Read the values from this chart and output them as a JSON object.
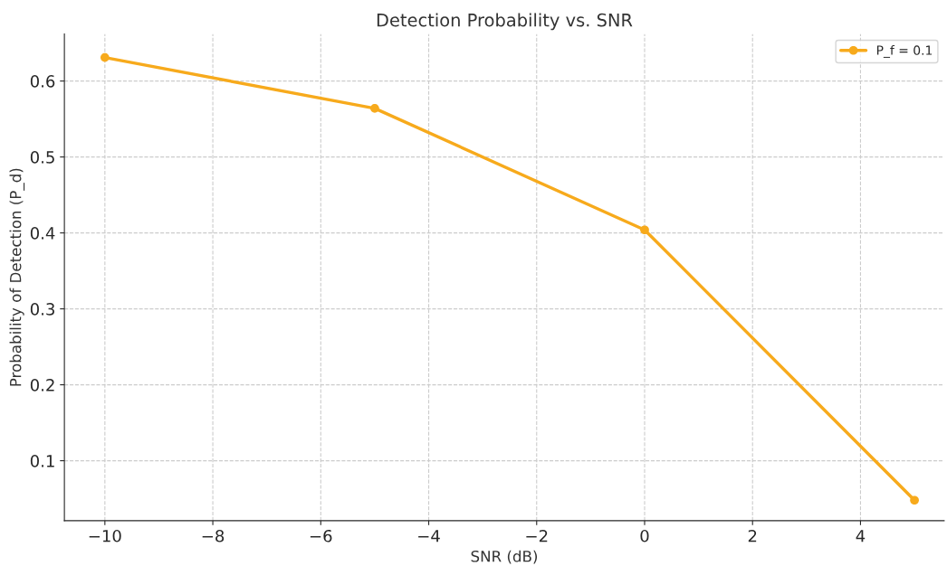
{
  "chart_data": {
    "type": "line",
    "title": "Detection Probability vs. SNR",
    "xlabel": "SNR (dB)",
    "ylabel": "Probability of Detection (P_d)",
    "x": [
      -10,
      -5,
      0,
      5
    ],
    "series": [
      {
        "name": "P_f = 0.1",
        "color": "#f7aa1c",
        "values": [
          0.631,
          0.564,
          0.404,
          0.048
        ]
      }
    ],
    "xlim": [
      -10.75,
      5.55
    ],
    "ylim": [
      0.021,
      0.662
    ],
    "xticks": [
      -10,
      -8,
      -6,
      -4,
      -2,
      0,
      2,
      4
    ],
    "yticks": [
      0.1,
      0.2,
      0.3,
      0.4,
      0.5,
      0.6
    ],
    "grid": true,
    "legend": "top right",
    "marker": "circle",
    "line_style": "solid"
  }
}
